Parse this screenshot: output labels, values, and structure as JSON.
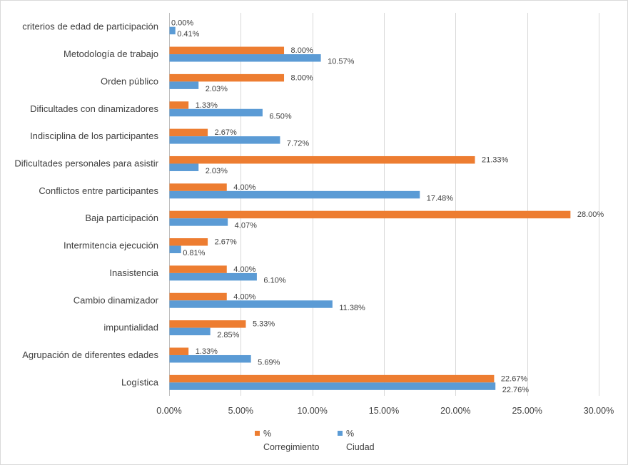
{
  "chart_data": {
    "type": "bar",
    "orientation": "horizontal",
    "title": "",
    "xlabel": "",
    "ylabel": "",
    "xlim": [
      0,
      30
    ],
    "x_ticks": [
      "0.00%",
      "5.00%",
      "10.00%",
      "15.00%",
      "20.00%",
      "25.00%",
      "30.00%"
    ],
    "x_tick_values": [
      0,
      5,
      10,
      15,
      20,
      25,
      30
    ],
    "grid": "vertical",
    "legend_position": "bottom",
    "categories": [
      "criterios de edad de participación",
      "Metodología de trabajo",
      "Orden público",
      "Dificultades con dinamizadores",
      "Indisciplina de los participantes",
      "Dificultades personales para asistir",
      "Conflictos entre participantes",
      "Baja participación",
      "Intermitencia ejecución",
      "Inasistencia",
      "Cambio dinamizador",
      "impuntialidad",
      "Agrupación de diferentes edades",
      "Logística"
    ],
    "series": [
      {
        "name": "% Corregimiento",
        "legend_lines": [
          "%",
          "Corregimiento"
        ],
        "color": "#ED7D31",
        "values": [
          0.0,
          8.0,
          8.0,
          1.33,
          2.67,
          21.33,
          4.0,
          28.0,
          2.67,
          4.0,
          4.0,
          5.33,
          1.33,
          22.67
        ],
        "labels": [
          "0.00%",
          "8.00%",
          "8.00%",
          "1.33%",
          "2.67%",
          "21.33%",
          "4.00%",
          "28.00%",
          "2.67%",
          "4.00%",
          "4.00%",
          "5.33%",
          "1.33%",
          "22.67%"
        ]
      },
      {
        "name": "% Ciudad",
        "legend_lines": [
          "%",
          "Ciudad"
        ],
        "color": "#5B9BD5",
        "values": [
          0.41,
          10.57,
          2.03,
          6.5,
          7.72,
          2.03,
          17.48,
          4.07,
          0.81,
          6.1,
          11.38,
          2.85,
          5.69,
          22.76
        ],
        "labels": [
          "0.41%",
          "10.57%",
          "2.03%",
          "6.50%",
          "7.72%",
          "2.03%",
          "17.48%",
          "4.07%",
          "0.81%",
          "6.10%",
          "11.38%",
          "2.85%",
          "5.69%",
          "22.76%"
        ]
      }
    ]
  }
}
